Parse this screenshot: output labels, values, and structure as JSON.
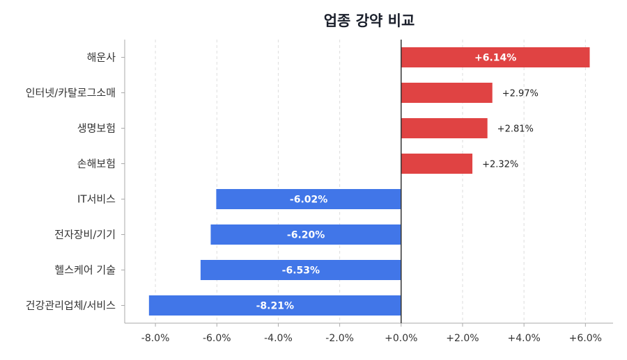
{
  "chart_data": {
    "type": "bar",
    "orientation": "horizontal",
    "title": "업종 강약 비교",
    "xlabel": "",
    "ylabel": "",
    "xlim": [
      -9.0,
      6.9
    ],
    "grid": "vertical-dashed",
    "categories": [
      "해운사",
      "인터넷/카탈로그소매",
      "생명보험",
      "손해보험",
      "IT서비스",
      "전자장비/기기",
      "헬스케어 기술",
      "건강관리업체/서비스"
    ],
    "values": [
      6.14,
      2.97,
      2.81,
      2.32,
      -6.02,
      -6.2,
      -6.53,
      -8.21
    ],
    "value_labels": [
      "+6.14%",
      "+2.97%",
      "+2.81%",
      "+2.32%",
      "-6.02%",
      "-6.20%",
      "-6.53%",
      "-8.21%"
    ],
    "x_ticks": [
      -8,
      -6,
      -4,
      -2,
      0,
      2,
      4,
      6
    ],
    "x_tick_labels": [
      "-8.0%",
      "-6.0%",
      "-4.0%",
      "-2.0%",
      "+0.0%",
      "+2.0%",
      "+4.0%",
      "+6.0%"
    ],
    "colors": {
      "positive": "#e04343",
      "negative": "#4176e8",
      "axis": "#aaaaaa",
      "zero_line": "#333333",
      "grid": "#dddddd"
    }
  }
}
